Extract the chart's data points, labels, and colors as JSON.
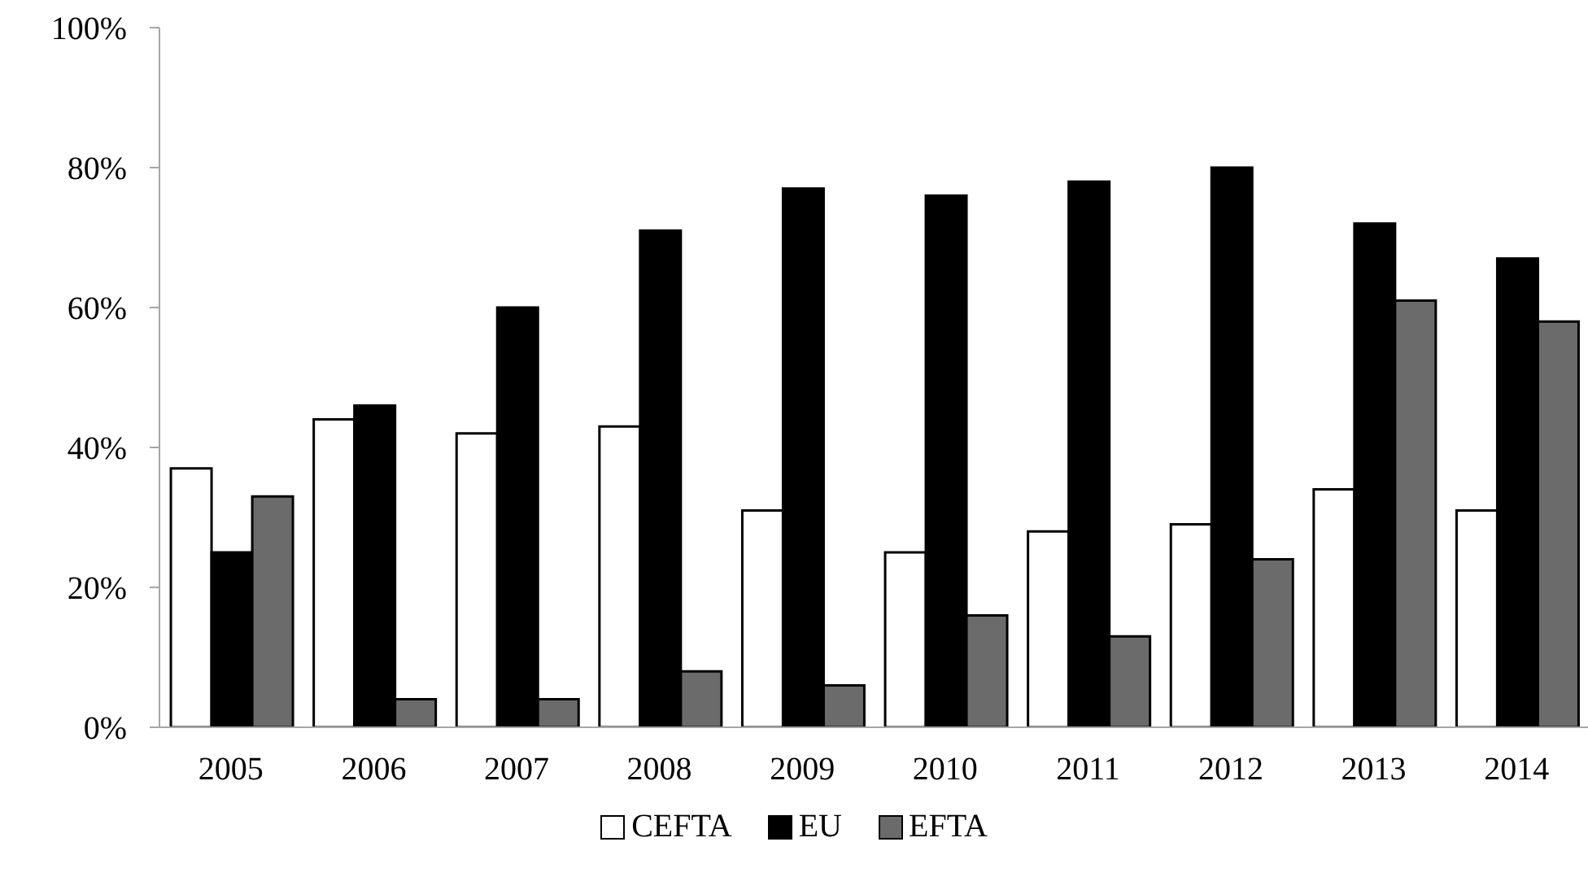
{
  "chart_data": {
    "type": "bar",
    "categories": [
      "2005",
      "2006",
      "2007",
      "2008",
      "2009",
      "2010",
      "2011",
      "2012",
      "2013",
      "2014"
    ],
    "series": [
      {
        "name": "CEFTA",
        "color": "#ffffff",
        "values": [
          37,
          44,
          42,
          43,
          31,
          25,
          28,
          29,
          34,
          31
        ]
      },
      {
        "name": "EU",
        "color": "#000000",
        "values": [
          25,
          46,
          60,
          71,
          77,
          76,
          78,
          80,
          72,
          67
        ]
      },
      {
        "name": "EFTA",
        "color": "#6b6b6b",
        "values": [
          33,
          4,
          4,
          8,
          6,
          16,
          13,
          24,
          61,
          58
        ]
      }
    ],
    "ylim": [
      0,
      100
    ],
    "yticks": [
      {
        "value": 0,
        "label": "0%"
      },
      {
        "value": 20,
        "label": "20%"
      },
      {
        "value": 40,
        "label": "40%"
      },
      {
        "value": 60,
        "label": "60%"
      },
      {
        "value": 80,
        "label": "80%"
      },
      {
        "value": 100,
        "label": "100%"
      }
    ],
    "grid": false,
    "legend": "bottom"
  }
}
